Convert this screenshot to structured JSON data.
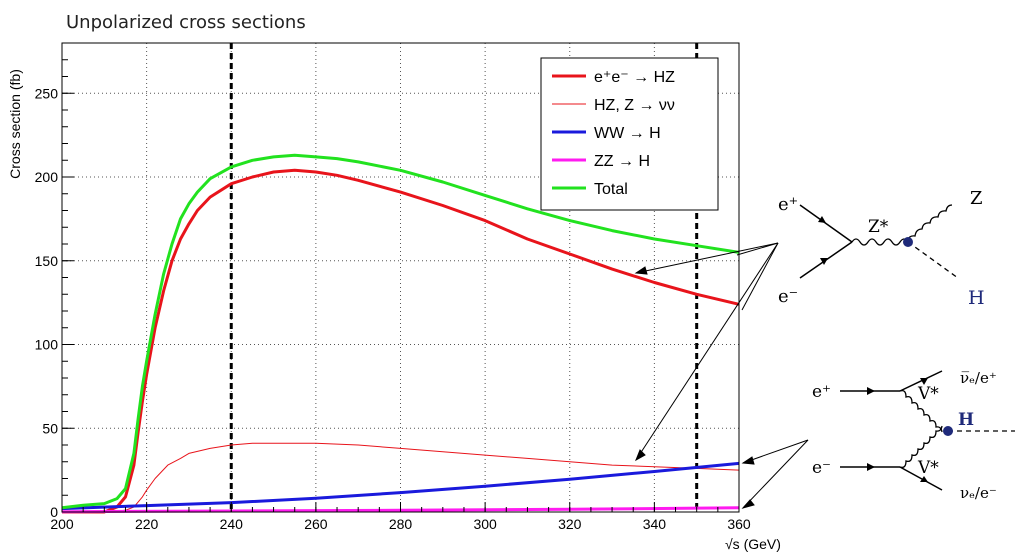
{
  "page_title": "Unpolarized cross sections",
  "chart_data": {
    "type": "line",
    "xlabel": "√s (GeV)",
    "ylabel": "Cross section (fb)",
    "xlim": [
      200,
      360
    ],
    "ylim": [
      0,
      280
    ],
    "xticks": [
      200,
      220,
      240,
      260,
      280,
      300,
      320,
      340,
      360
    ],
    "yticks": [
      0,
      50,
      100,
      150,
      200,
      250
    ],
    "grid": true,
    "legend_position": "top-right",
    "vertical_lines": [
      240,
      350
    ],
    "series": [
      {
        "name": "e⁺e⁻ → HZ",
        "color": "#e8141b",
        "width": 3,
        "x": [
          200,
          205,
          210,
          213,
          215,
          217,
          218,
          219,
          220,
          222,
          224,
          226,
          228,
          230,
          232,
          235,
          240,
          245,
          250,
          255,
          260,
          265,
          270,
          280,
          290,
          300,
          310,
          320,
          330,
          340,
          350,
          360
        ],
        "y": [
          0,
          0,
          0,
          3,
          9,
          28,
          48,
          66,
          82,
          110,
          132,
          150,
          163,
          172,
          180,
          188,
          196,
          200,
          203,
          204,
          203,
          201,
          198,
          191,
          183,
          174,
          163,
          154,
          145,
          137,
          130,
          124
        ]
      },
      {
        "name": "HZ, Z → νν",
        "color": "#e8141b",
        "width": 1,
        "x": [
          200,
          210,
          215,
          217,
          218,
          219,
          220,
          222,
          225,
          228,
          230,
          235,
          240,
          245,
          250,
          255,
          260,
          270,
          280,
          290,
          300,
          310,
          320,
          330,
          340,
          350,
          360
        ],
        "y": [
          0,
          0,
          1,
          3,
          6,
          9,
          13,
          20,
          28,
          32,
          35,
          38,
          40,
          41,
          41,
          41,
          41,
          40,
          38,
          36,
          34,
          32,
          30,
          28,
          27,
          26,
          25
        ]
      },
      {
        "name": "WW → H",
        "color": "#1a1adc",
        "width": 3,
        "x": [
          200,
          220,
          240,
          260,
          280,
          300,
          320,
          340,
          360
        ],
        "y": [
          2,
          3.8,
          5.6,
          8.2,
          11.6,
          15.4,
          19.6,
          24.2,
          29
        ]
      },
      {
        "name": "ZZ → H",
        "color": "#ff1bf0",
        "width": 3,
        "x": [
          200,
          240,
          280,
          320,
          360
        ],
        "y": [
          0.2,
          0.6,
          1.0,
          1.6,
          2.5
        ]
      },
      {
        "name": "Total",
        "color": "#22e21f",
        "width": 3,
        "x": [
          200,
          205,
          210,
          213,
          215,
          217,
          218,
          219,
          220,
          222,
          224,
          226,
          228,
          230,
          232,
          235,
          240,
          245,
          250,
          255,
          260,
          265,
          270,
          280,
          290,
          300,
          310,
          320,
          330,
          340,
          350,
          360
        ],
        "y": [
          2.5,
          4,
          5,
          8,
          14,
          35,
          56,
          75,
          90,
          118,
          142,
          160,
          175,
          184,
          191,
          199,
          206,
          210,
          212,
          213,
          212,
          211,
          209,
          204,
          197,
          189,
          181,
          174,
          168,
          163,
          159,
          155
        ]
      }
    ]
  },
  "diagrams": {
    "ee_hz": {
      "e_plus": "e⁺",
      "e_minus": "e⁻",
      "z_star": "Z*",
      "z": "Z",
      "h": "H"
    },
    "vbf": {
      "e_plus": "e⁺",
      "e_minus": "e⁻",
      "v_top": "V*",
      "v_bottom": "V*",
      "h": "H",
      "out_top": "ν̅ₑ/e⁺",
      "out_bottom": "νₑ/e⁻"
    }
  }
}
